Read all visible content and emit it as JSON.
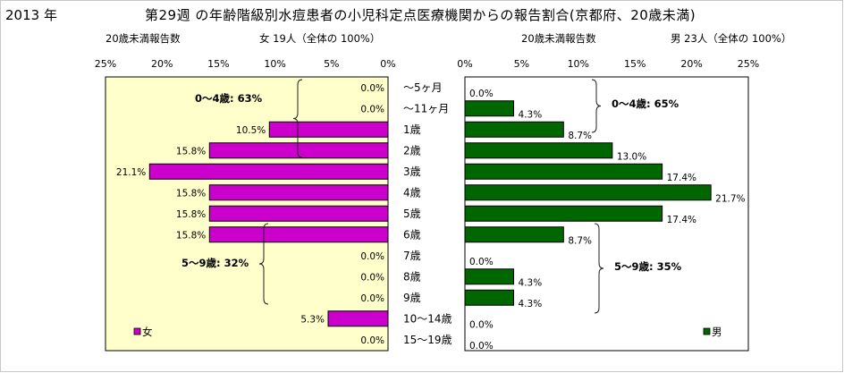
{
  "header": {
    "year": "2013 年",
    "title": "第29週 の年齢階級別水痘患者の小児科定点医療機関からの報告割合(京都府、20歳未満)"
  },
  "left_panel": {
    "reports_label": "20歳未満報告数",
    "summary": "女  19人（全体の  100%）",
    "bracket_upper": "0〜4歳: 63%",
    "bracket_lower": "5〜9歳: 32%",
    "legend": "女"
  },
  "right_panel": {
    "reports_label": "20歳未満報告数",
    "summary": "男  23人（全体の  100%）",
    "bracket_upper": "0〜4歳: 65%",
    "bracket_lower": "5〜9歳: 35%",
    "legend": "男"
  },
  "colors": {
    "female": "#cc00cc",
    "male": "#006600",
    "highlight": "#ffffcc",
    "grid": "#000000"
  },
  "chart_data": [
    {
      "type": "bar",
      "orientation": "horizontal",
      "direction": "right-to-left",
      "series": [
        {
          "name": "女",
          "values": [
            0.0,
            0.0,
            10.5,
            15.8,
            21.1,
            15.8,
            15.8,
            15.8,
            0.0,
            0.0,
            0.0,
            5.3,
            0.0
          ]
        }
      ],
      "categories": [
        "〜5ヶ月",
        "〜11ヶ月",
        "1歳",
        "2歳",
        "3歳",
        "4歳",
        "5歳",
        "6歳",
        "7歳",
        "8歳",
        "9歳",
        "10〜14歳",
        "15〜19歳"
      ],
      "labels": [
        "0.0%",
        "0.0%",
        "10.5%",
        "15.8%",
        "21.1%",
        "15.8%",
        "15.8%",
        "15.8%",
        "0.0%",
        "0.0%",
        "0.0%",
        "5.3%",
        "0.0%"
      ],
      "xlim": [
        0,
        25
      ],
      "ticks": [
        "25%",
        "20%",
        "15%",
        "10%",
        "5%",
        "0%"
      ],
      "legend_position": "bottom-left"
    },
    {
      "type": "bar",
      "orientation": "horizontal",
      "direction": "left-to-right",
      "series": [
        {
          "name": "男",
          "values": [
            0.0,
            4.3,
            8.7,
            13.0,
            17.4,
            21.7,
            17.4,
            8.7,
            0.0,
            4.3,
            4.3,
            0.0,
            0.0
          ]
        }
      ],
      "categories": [
        "〜5ヶ月",
        "〜11ヶ月",
        "1歳",
        "2歳",
        "3歳",
        "4歳",
        "5歳",
        "6歳",
        "7歳",
        "8歳",
        "9歳",
        "10〜14歳",
        "15〜19歳"
      ],
      "labels": [
        "0.0%",
        "4.3%",
        "8.7%",
        "13.0%",
        "17.4%",
        "21.7%",
        "17.4%",
        "8.7%",
        "0.0%",
        "4.3%",
        "4.3%",
        "0.0%",
        "0.0%"
      ],
      "xlim": [
        0,
        25
      ],
      "ticks": [
        "0%",
        "5%",
        "10%",
        "15%",
        "20%",
        "25%"
      ],
      "legend_position": "bottom-right"
    }
  ]
}
